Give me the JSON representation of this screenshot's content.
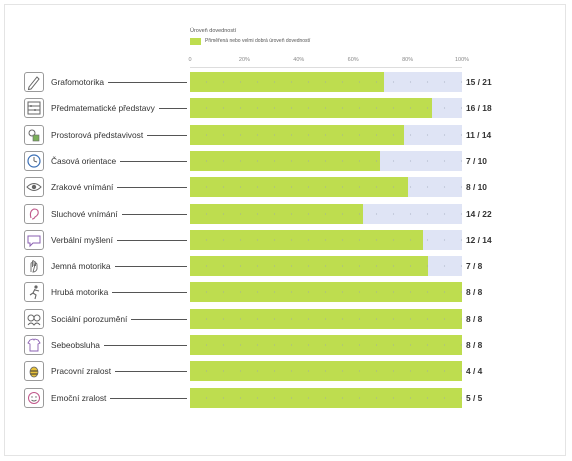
{
  "colors": {
    "bar": "#bedd4f",
    "track": "#dfe4f5",
    "border": "#e4e4e4"
  },
  "legend": {
    "title": "Úroveň dovedností",
    "label": "Přiměřená nebo velmi dobrá úroveň dovedností"
  },
  "chart_data": {
    "type": "bar",
    "orientation": "horizontal",
    "title": "",
    "xlim": [
      0,
      100
    ],
    "x_ticks": [
      "0",
      "20%",
      "40%",
      "60%",
      "80%",
      "100%"
    ],
    "grid": false,
    "legend_placement": "top-left",
    "series": [
      {
        "name": "Přiměřená nebo velmi dobrá úroveň dovedností"
      }
    ],
    "categories": [
      {
        "label": "Grafomotorika",
        "icon": "pencil-icon",
        "value": 15,
        "total": 21,
        "display": "15 / 21"
      },
      {
        "label": "Předmatematické představy",
        "icon": "abacus-icon",
        "value": 16,
        "total": 18,
        "display": "16 / 18"
      },
      {
        "label": "Prostorová představivost",
        "icon": "shapes-icon",
        "value": 11,
        "total": 14,
        "display": "11 / 14"
      },
      {
        "label": "Časová orientace",
        "icon": "clock-icon",
        "value": 7,
        "total": 10,
        "display": "7 / 10"
      },
      {
        "label": "Zrakové vnímání",
        "icon": "eye-icon",
        "value": 8,
        "total": 10,
        "display": "8 / 10"
      },
      {
        "label": "Sluchové vnímání",
        "icon": "ear-icon",
        "value": 14,
        "total": 22,
        "display": "14 / 22"
      },
      {
        "label": "Verbální myšlení",
        "icon": "speech-bubble-icon",
        "value": 12,
        "total": 14,
        "display": "12 / 14"
      },
      {
        "label": "Jemná motorika",
        "icon": "hand-icon",
        "value": 7,
        "total": 8,
        "display": "7 / 8"
      },
      {
        "label": "Hrubá motorika",
        "icon": "running-person-icon",
        "value": 8,
        "total": 8,
        "display": "8 / 8"
      },
      {
        "label": "Sociální porozumění",
        "icon": "people-icon",
        "value": 8,
        "total": 8,
        "display": "8 / 8"
      },
      {
        "label": "Sebeobsluha",
        "icon": "shirt-icon",
        "value": 8,
        "total": 8,
        "display": "8 / 8"
      },
      {
        "label": "Pracovní zralost",
        "icon": "bee-icon",
        "value": 4,
        "total": 4,
        "display": "4 / 4"
      },
      {
        "label": "Emoční zralost",
        "icon": "heart-face-icon",
        "value": 5,
        "total": 5,
        "display": "5 / 5"
      }
    ]
  }
}
